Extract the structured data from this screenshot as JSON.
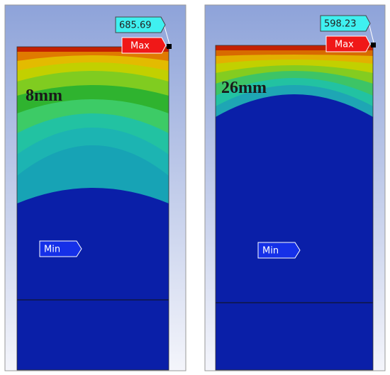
{
  "panels": [
    {
      "label": "8mm",
      "max_value": "685.69",
      "max_label": "Max",
      "min_label": "Min"
    },
    {
      "label": "26mm",
      "max_value": "598.23",
      "max_label": "Max",
      "min_label": "Min"
    }
  ]
}
